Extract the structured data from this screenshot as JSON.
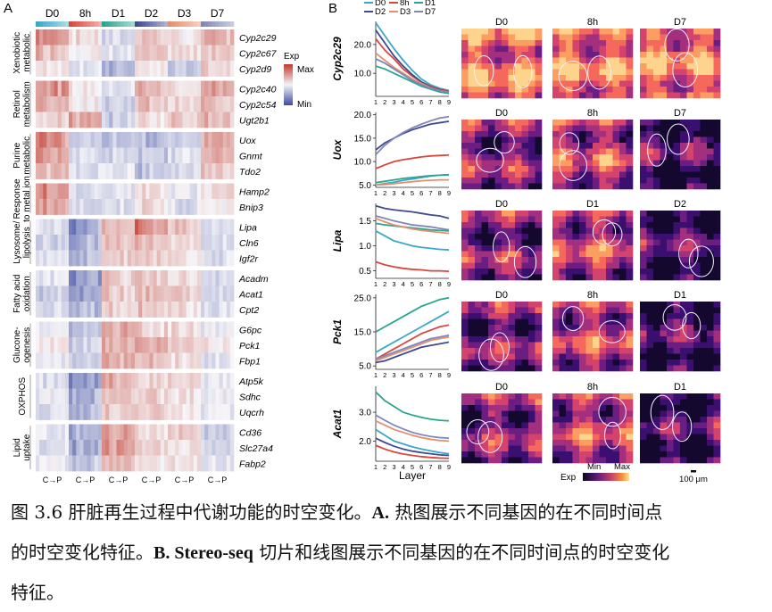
{
  "panel_a": {
    "label": "A",
    "timepoints": [
      "D0",
      "8h",
      "D1",
      "D2",
      "D3",
      "D7"
    ],
    "timepoint_colors": [
      "#39a9c6",
      "#d8473c",
      "#2aa58e",
      "#3f4a90",
      "#e38f6e",
      "#8087b8"
    ],
    "groups": [
      {
        "name": [
          "Xenobiotic",
          "metabolic"
        ],
        "genes": [
          "Cyp2c29",
          "Cyp2c67",
          "Cyp2d9"
        ]
      },
      {
        "name": [
          "Retinol",
          "metabolism"
        ],
        "genes": [
          "Cyp2c40",
          "Cyp2c54",
          "Ugt2b1"
        ]
      },
      {
        "name": [
          "Purine",
          "metabolic"
        ],
        "genes": [
          "Uox",
          "Gnmt",
          "Tdo2"
        ]
      },
      {
        "name": [
          "Response",
          "to metal ion"
        ],
        "genes": [
          "Hamp2",
          "Bnip3"
        ]
      },
      {
        "name": [
          "Lysosome/",
          "lipolysis"
        ],
        "genes": [
          "Lipa",
          "Cln6",
          "Igf2r"
        ]
      },
      {
        "name": [
          "Fatty acid",
          "oxidation"
        ],
        "genes": [
          "Acadm",
          "Acat1",
          "Cpt2"
        ]
      },
      {
        "name": [
          "Glucone-",
          "ogenesis"
        ],
        "genes": [
          "G6pc",
          "Pck1",
          "Fbp1"
        ]
      },
      {
        "name": [
          "OXPHOS"
        ],
        "genes": [
          "Atp5k",
          "Sdhc",
          "Uqcrh"
        ]
      },
      {
        "name": [
          "Lipid",
          "uptake"
        ],
        "genes": [
          "Cd36",
          "Slc27a4",
          "Fabp2"
        ]
      }
    ],
    "legend": {
      "title": "Exp",
      "max": "Max",
      "min": "Min",
      "max_color": "#c0392b",
      "min_color": "#3b4ba0"
    },
    "x_label": "C→P"
  },
  "panel_b": {
    "label": "B",
    "legend_series": [
      "D0",
      "8h",
      "D1",
      "D2",
      "D3",
      "D7"
    ],
    "x_ticks": [
      "1",
      "2",
      "3",
      "4",
      "5",
      "6",
      "7",
      "8",
      "9"
    ],
    "x_label": "Layer",
    "rows": [
      {
        "gene": "Cyp2c29",
        "y_ticks": [
          "20.0",
          "10.0"
        ],
        "maps": [
          "D0",
          "8h",
          "D7"
        ]
      },
      {
        "gene": "Uox",
        "y_ticks": [
          "20.0",
          "15.0",
          "10.0",
          "5.0"
        ],
        "maps": [
          "D0",
          "8h",
          "D7"
        ]
      },
      {
        "gene": "Lipa",
        "y_ticks": [
          "1.5",
          "1.0",
          "0.5"
        ],
        "maps": [
          "D0",
          "D1",
          "D2"
        ]
      },
      {
        "gene": "Pck1",
        "y_ticks": [
          "25.0",
          "15.0",
          "5.0"
        ],
        "maps": [
          "D0",
          "8h",
          "D1"
        ]
      },
      {
        "gene": "Acat1",
        "y_ticks": [
          "3.0",
          "2.0"
        ],
        "maps": [
          "D0",
          "8h",
          "D1"
        ]
      }
    ],
    "colorbar": {
      "title": "Exp",
      "min": "Min",
      "max": "Max"
    },
    "scale_bar": "100 μm"
  },
  "chart_data": [
    {
      "type": "line",
      "gene": "Cyp2c29",
      "x": [
        1,
        2,
        3,
        4,
        5,
        6,
        7,
        8,
        9
      ],
      "ylim": [
        2,
        28
      ],
      "series": [
        {
          "name": "D0",
          "values": [
            27.5,
            23,
            18.5,
            14.5,
            11,
            8,
            6,
            4.8,
            4
          ]
        },
        {
          "name": "8h",
          "values": [
            22,
            18,
            15,
            11.5,
            9,
            7,
            5.5,
            4.5,
            3.8
          ]
        },
        {
          "name": "D1",
          "values": [
            12.5,
            11.5,
            10,
            8.5,
            7,
            5.5,
            4.5,
            3.5,
            3
          ]
        },
        {
          "name": "D2",
          "values": [
            25,
            20.5,
            16,
            12.5,
            9.5,
            7,
            5.2,
            4.2,
            3.6
          ]
        },
        {
          "name": "D3",
          "values": [
            17,
            14.5,
            12,
            10,
            8,
            6.5,
            5,
            4,
            3.5
          ]
        },
        {
          "name": "D7",
          "values": [
            15,
            13.5,
            11.5,
            9.5,
            7.5,
            6,
            4.8,
            4,
            3.4
          ]
        }
      ]
    },
    {
      "type": "line",
      "gene": "Uox",
      "x": [
        1,
        2,
        3,
        4,
        5,
        6,
        7,
        8,
        9
      ],
      "ylim": [
        4.5,
        20.5
      ],
      "series": [
        {
          "name": "D0",
          "values": [
            5,
            5.3,
            5.6,
            6,
            6.3,
            6.6,
            6.9,
            7.1,
            7.2
          ]
        },
        {
          "name": "8h",
          "values": [
            8.5,
            9.3,
            10,
            10.4,
            10.7,
            11,
            11.2,
            11.3,
            11.4
          ]
        },
        {
          "name": "D1",
          "values": [
            5.5,
            5.8,
            6.1,
            6.4,
            6.6,
            6.8,
            7,
            7.1,
            7.2
          ]
        },
        {
          "name": "D2",
          "values": [
            12.5,
            14,
            15,
            16,
            16.8,
            17.4,
            18,
            18.3,
            18.6
          ]
        },
        {
          "name": "D3",
          "values": [
            5,
            5.1,
            5.3,
            5.5,
            5.7,
            5.9,
            6,
            6.1,
            6.1
          ]
        },
        {
          "name": "D7",
          "values": [
            11.5,
            13.5,
            15,
            16.2,
            17.2,
            18,
            18.7,
            19.3,
            19.6
          ]
        }
      ]
    },
    {
      "type": "line",
      "gene": "Lipa",
      "x": [
        1,
        2,
        3,
        4,
        5,
        6,
        7,
        8,
        9
      ],
      "ylim": [
        0.35,
        1.85
      ],
      "series": [
        {
          "name": "D0",
          "values": [
            1.3,
            1.2,
            1.1,
            1.05,
            1,
            0.97,
            0.95,
            0.93,
            0.92
          ]
        },
        {
          "name": "8h",
          "values": [
            0.68,
            0.62,
            0.58,
            0.55,
            0.53,
            0.52,
            0.5,
            0.5,
            0.49
          ]
        },
        {
          "name": "D1",
          "values": [
            1.45,
            1.42,
            1.4,
            1.38,
            1.36,
            1.34,
            1.32,
            1.31,
            1.3
          ]
        },
        {
          "name": "D2",
          "values": [
            1.8,
            1.75,
            1.72,
            1.7,
            1.68,
            1.65,
            1.62,
            1.6,
            1.55
          ]
        },
        {
          "name": "D3",
          "values": [
            1.55,
            1.48,
            1.42,
            1.38,
            1.34,
            1.31,
            1.29,
            1.27,
            1.25
          ]
        },
        {
          "name": "D7",
          "values": [
            1.6,
            1.55,
            1.5,
            1.46,
            1.42,
            1.4,
            1.38,
            1.35,
            1.32
          ]
        }
      ]
    },
    {
      "type": "line",
      "gene": "Pck1",
      "x": [
        1,
        2,
        3,
        4,
        5,
        6,
        7,
        8,
        9
      ],
      "ylim": [
        4,
        26
      ],
      "series": [
        {
          "name": "D0",
          "values": [
            9,
            10.5,
            12,
            13.5,
            15,
            16.5,
            18,
            19.5,
            21
          ]
        },
        {
          "name": "8h",
          "values": [
            7,
            8.5,
            10,
            11.5,
            13,
            14.5,
            15.5,
            16.5,
            17
          ]
        },
        {
          "name": "D1",
          "values": [
            15,
            16.5,
            18,
            19.5,
            21,
            22.5,
            23.5,
            24.5,
            25
          ]
        },
        {
          "name": "D2",
          "values": [
            6,
            6.5,
            7.5,
            8.5,
            9.5,
            10.5,
            11,
            11.5,
            12
          ]
        },
        {
          "name": "D3",
          "values": [
            6.5,
            7.5,
            8.5,
            9.5,
            10.5,
            11.5,
            12.5,
            13,
            13.5
          ]
        },
        {
          "name": "D7",
          "values": [
            7,
            8,
            9,
            10,
            11,
            12,
            13,
            13.5,
            14
          ]
        }
      ]
    },
    {
      "type": "line",
      "gene": "Acat1",
      "x": [
        1,
        2,
        3,
        4,
        5,
        6,
        7,
        8,
        9
      ],
      "ylim": [
        1.3,
        3.9
      ],
      "series": [
        {
          "name": "D0",
          "values": [
            2.4,
            2.2,
            2,
            1.9,
            1.8,
            1.72,
            1.66,
            1.6,
            1.56
          ]
        },
        {
          "name": "8h",
          "values": [
            1.85,
            1.72,
            1.62,
            1.55,
            1.5,
            1.46,
            1.43,
            1.41,
            1.4
          ]
        },
        {
          "name": "D1",
          "values": [
            3.7,
            3.4,
            3.2,
            3,
            2.9,
            2.82,
            2.76,
            2.72,
            2.7
          ]
        },
        {
          "name": "D2",
          "values": [
            2.1,
            1.95,
            1.82,
            1.72,
            1.65,
            1.6,
            1.56,
            1.52,
            1.5
          ]
        },
        {
          "name": "D3",
          "values": [
            2.7,
            2.55,
            2.4,
            2.3,
            2.2,
            2.12,
            2.06,
            2.02,
            2
          ]
        },
        {
          "name": "D7",
          "values": [
            2.9,
            2.72,
            2.55,
            2.42,
            2.3,
            2.22,
            2.16,
            2.12,
            2.1
          ]
        }
      ]
    }
  ],
  "caption": {
    "line1_a": "图 3.6 肝脏再生过程中代谢功能的时空变化。",
    "line1_b": "A.",
    "line1_c": " 热图展示不同基因的在不同时间点",
    "line2_a": "的时空变化特征。",
    "line2_b": "B. Stereo-seq",
    "line2_c": " 切片和线图展示不同基因的在不同时间点的时空变化",
    "line3": "特征。"
  }
}
